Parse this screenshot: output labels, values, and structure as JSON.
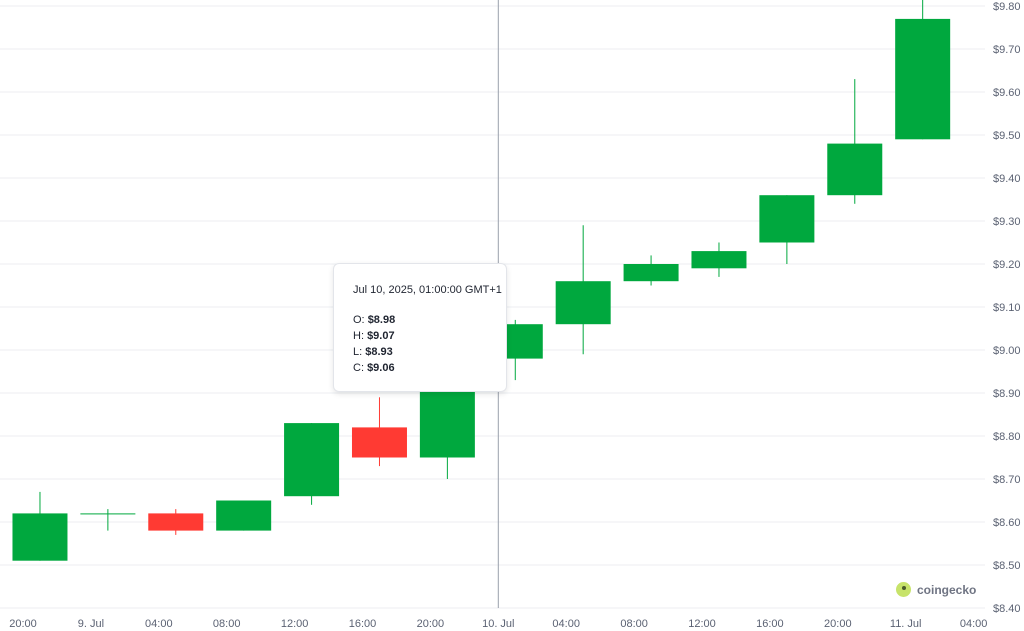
{
  "chart_data": {
    "type": "candlestick",
    "ylim": [
      8.4,
      9.8
    ],
    "y_ticks": [
      "$8.40",
      "$8.50",
      "$8.60",
      "$8.70",
      "$8.80",
      "$8.90",
      "$9.00",
      "$9.10",
      "$9.20",
      "$9.30",
      "$9.40",
      "$9.50",
      "$9.60",
      "$9.70",
      "$9.80"
    ],
    "x_ticks": [
      "20:00",
      "9. Jul",
      "04:00",
      "08:00",
      "12:00",
      "16:00",
      "20:00",
      "10. Jul",
      "04:00",
      "08:00",
      "12:00",
      "16:00",
      "20:00",
      "11. Jul",
      "04:00"
    ],
    "candles": [
      {
        "time": "Jul 8, 2025, 21:00",
        "open": 8.51,
        "high": 8.67,
        "low": 8.51,
        "close": 8.62
      },
      {
        "time": "Jul 9, 2025, 01:00",
        "open": 8.62,
        "high": 8.63,
        "low": 8.58,
        "close": 8.62
      },
      {
        "time": "Jul 9, 2025, 05:00",
        "open": 8.62,
        "high": 8.63,
        "low": 8.57,
        "close": 8.58
      },
      {
        "time": "Jul 9, 2025, 09:00",
        "open": 8.58,
        "high": 8.65,
        "low": 8.58,
        "close": 8.65
      },
      {
        "time": "Jul 9, 2025, 13:00",
        "open": 8.66,
        "high": 8.83,
        "low": 8.64,
        "close": 8.83
      },
      {
        "time": "Jul 9, 2025, 17:00",
        "open": 8.82,
        "high": 8.89,
        "low": 8.73,
        "close": 8.75
      },
      {
        "time": "Jul 9, 2025, 21:00",
        "open": 8.75,
        "high": 8.98,
        "low": 8.7,
        "close": 8.98
      },
      {
        "time": "Jul 10, 2025, 01:00",
        "open": 8.98,
        "high": 9.07,
        "low": 8.93,
        "close": 9.06
      },
      {
        "time": "Jul 10, 2025, 05:00",
        "open": 9.06,
        "high": 9.29,
        "low": 8.99,
        "close": 9.16
      },
      {
        "time": "Jul 10, 2025, 09:00",
        "open": 9.16,
        "high": 9.22,
        "low": 9.15,
        "close": 9.2
      },
      {
        "time": "Jul 10, 2025, 13:00",
        "open": 9.19,
        "high": 9.25,
        "low": 9.17,
        "close": 9.23
      },
      {
        "time": "Jul 10, 2025, 17:00",
        "open": 9.25,
        "high": 9.36,
        "low": 9.2,
        "close": 9.36
      },
      {
        "time": "Jul 10, 2025, 21:00",
        "open": 9.36,
        "high": 9.63,
        "low": 9.34,
        "close": 9.48
      },
      {
        "time": "Jul 11, 2025, 01:00",
        "open": 9.49,
        "high": 9.82,
        "low": 9.49,
        "close": 9.77
      }
    ],
    "colors": {
      "up": "#00a83e",
      "down": "#ff3a33",
      "grid": "#eceef2",
      "crosshair": "#9aa0ab"
    },
    "tooltip": {
      "title": "Jul 10, 2025, 01:00:00 GMT+1",
      "o_label": "O:",
      "o_value": "$8.98",
      "h_label": "H:",
      "h_value": "$9.07",
      "l_label": "L:",
      "l_value": "$8.93",
      "c_label": "C:",
      "c_value": "$9.06"
    }
  },
  "watermark": {
    "text": "coingecko",
    "icon": "gecko-logo-icon"
  }
}
